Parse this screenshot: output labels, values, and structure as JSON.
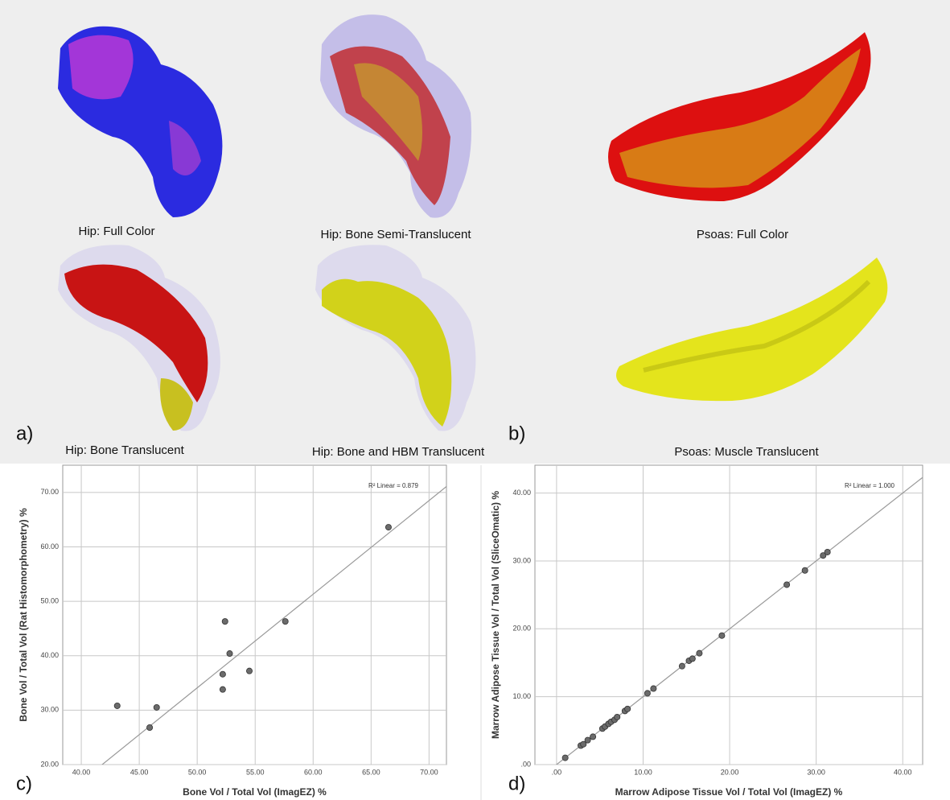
{
  "captions": [
    "Hip: Full Color",
    "Hip: Bone Semi-Translucent",
    "Psoas: Full Color",
    "Hip: Bone Translucent",
    "Hip: Bone and HBM Translucent",
    "Psoas: Muscle Translucent"
  ],
  "panel_labels": [
    "a)",
    "b)",
    "c)",
    "d)"
  ],
  "chart_data": [
    {
      "type": "scatter",
      "x_label": "Bone Vol / Total Vol (ImagEZ) %",
      "y_label": "Bone Vol / Total Vol (Rat Histomorphometry) %",
      "annotation": "R² Linear = 0.879",
      "x": [
        43.1,
        45.9,
        46.5,
        52.4,
        52.8,
        52.2,
        52.2,
        54.5,
        57.6,
        66.5
      ],
      "values": [
        30.8,
        26.8,
        30.5,
        46.3,
        40.4,
        36.6,
        33.8,
        37.2,
        46.3,
        63.6
      ],
      "color": "#6b6b6b",
      "fit_line": {
        "slope": 1.72,
        "intercept": -51.9
      },
      "xlim": [
        38.4,
        71.5
      ],
      "ylim": [
        20,
        75
      ],
      "xticks": [
        {
          "value": 40,
          "label": "40.00"
        },
        {
          "value": 45,
          "label": "45.00"
        },
        {
          "value": 50,
          "label": "50.00"
        },
        {
          "value": 55,
          "label": "55.00"
        },
        {
          "value": 60,
          "label": "60.00"
        },
        {
          "value": 65,
          "label": "65.00"
        },
        {
          "value": 70,
          "label": "70.00"
        }
      ],
      "yticks": [
        {
          "value": 20,
          "label": "20.00"
        },
        {
          "value": 30,
          "label": "30.00"
        },
        {
          "value": 40,
          "label": "40.00"
        },
        {
          "value": 50,
          "label": "50.00"
        },
        {
          "value": 60,
          "label": "60.00"
        },
        {
          "value": 70,
          "label": "70.00"
        }
      ],
      "grid": true
    },
    {
      "type": "scatter",
      "x_label": "Marrow Adipose Tissue Vol / Total Vol (ImagEZ) %",
      "y_label": "Marrow Adipose Tissue Vol / Total Vol (SliceOmatic) %",
      "annotation": "R² Linear = 1.000",
      "x": [
        1.0,
        2.8,
        3.1,
        3.6,
        4.2,
        5.3,
        5.6,
        6.0,
        6.3,
        6.7,
        7.0,
        7.9,
        8.2,
        10.5,
        11.2,
        14.5,
        15.3,
        15.7,
        16.5,
        19.1,
        26.6,
        28.7,
        30.8,
        31.3
      ],
      "values": [
        1.0,
        2.8,
        3.0,
        3.6,
        4.1,
        5.3,
        5.6,
        6.0,
        6.3,
        6.6,
        7.0,
        7.9,
        8.2,
        10.5,
        11.2,
        14.5,
        15.3,
        15.6,
        16.4,
        19.0,
        26.5,
        28.6,
        30.8,
        31.3
      ],
      "color": "#6b6b6b",
      "fit_line": {
        "slope": 1.0,
        "intercept": 0.0
      },
      "xlim": [
        -2.5,
        42.3
      ],
      "ylim": [
        0,
        44.1
      ],
      "xticks": [
        {
          "value": 0,
          "label": ".00"
        },
        {
          "value": 10,
          "label": "10.00"
        },
        {
          "value": 20,
          "label": "20.00"
        },
        {
          "value": 30,
          "label": "30.00"
        },
        {
          "value": 40,
          "label": "40.00"
        }
      ],
      "yticks": [
        {
          "value": 0,
          "label": ".00"
        },
        {
          "value": 10,
          "label": "10.00"
        },
        {
          "value": 20,
          "label": "20.00"
        },
        {
          "value": 30,
          "label": "30.00"
        },
        {
          "value": 40,
          "label": "40.00"
        }
      ],
      "grid": true
    }
  ]
}
